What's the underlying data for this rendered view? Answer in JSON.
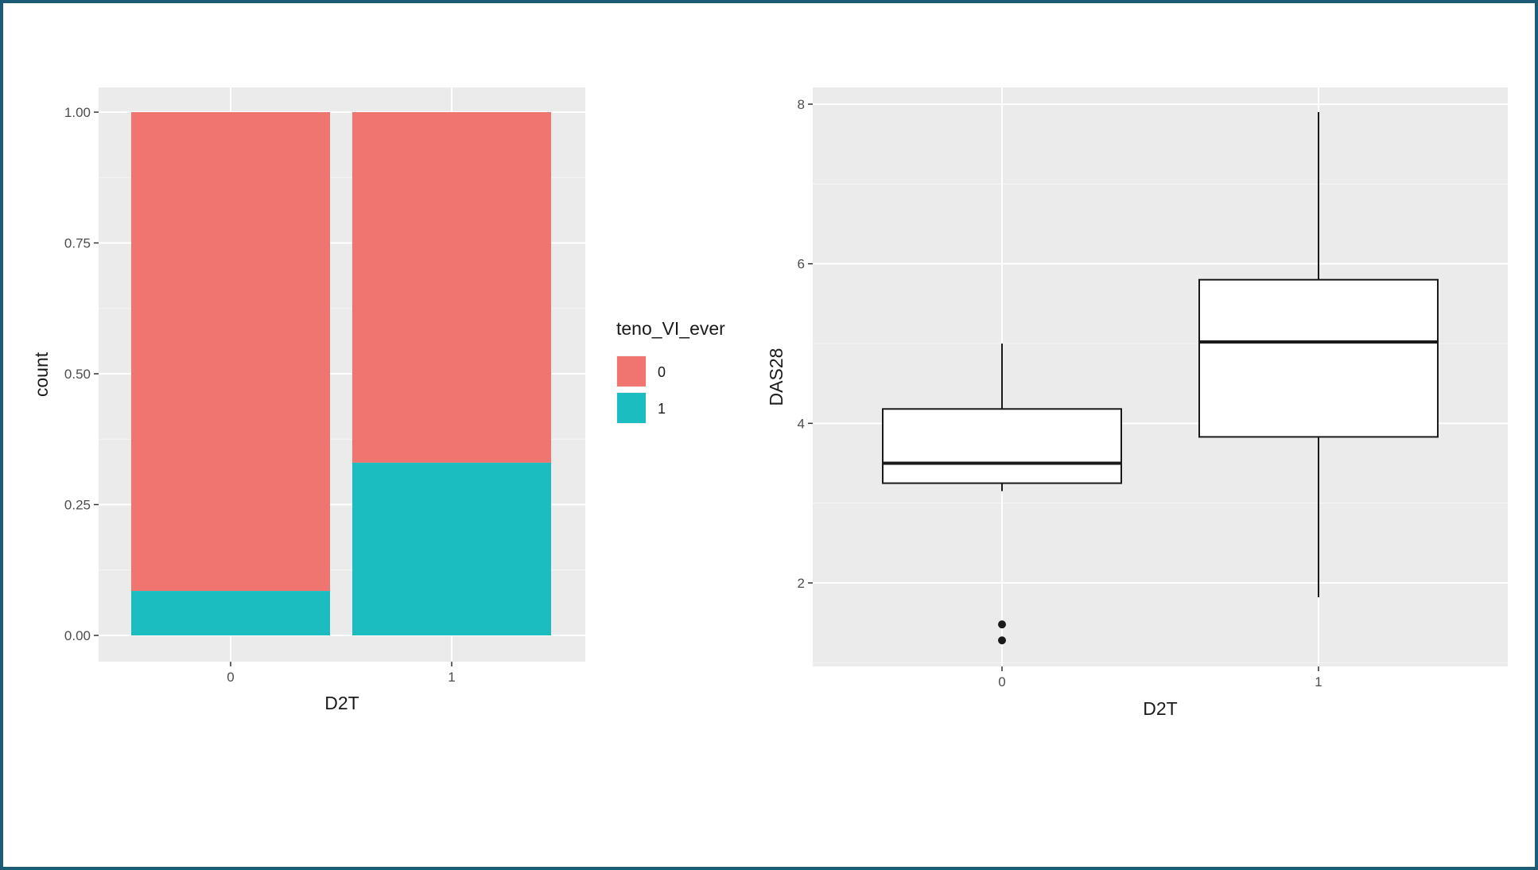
{
  "chart_data": [
    {
      "type": "bar",
      "stacked": true,
      "position": "fill",
      "categories": [
        "0",
        "1"
      ],
      "series": [
        {
          "name": "0",
          "color": "#f07470",
          "values": [
            0.915,
            0.67
          ]
        },
        {
          "name": "1",
          "color": "#1bbdc1",
          "values": [
            0.085,
            0.33
          ]
        }
      ],
      "xlabel": "D2T",
      "ylabel": "count",
      "ylim": [
        0,
        1
      ],
      "yticks": [
        "0.00",
        "0.25",
        "0.50",
        "0.75",
        "1.00"
      ],
      "grid": true,
      "legend": {
        "title": "teno_VI_ever",
        "placement": "right",
        "labels": [
          "0",
          "1"
        ]
      }
    },
    {
      "type": "box",
      "categories": [
        "0",
        "1"
      ],
      "boxes": [
        {
          "category": "0",
          "whisker_low": 3.15,
          "q1": 3.25,
          "median": 3.5,
          "q3": 4.18,
          "whisker_high": 5.0,
          "outliers": [
            1.48,
            1.28
          ]
        },
        {
          "category": "1",
          "whisker_low": 1.82,
          "q1": 3.83,
          "median": 5.02,
          "q3": 5.8,
          "whisker_high": 7.9,
          "outliers": []
        }
      ],
      "xlabel": "D2T",
      "ylabel": "DAS28",
      "ylim": [
        0.95,
        8.2
      ],
      "yticks": [
        2,
        4,
        6,
        8
      ],
      "grid": true
    }
  ]
}
